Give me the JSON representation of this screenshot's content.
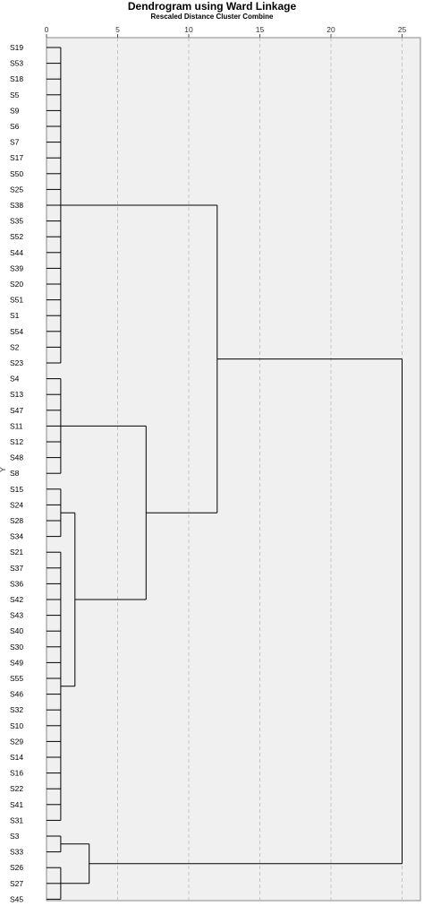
{
  "chart_data": {
    "type": "dendrogram",
    "title": "Dendrogram using Ward Linkage",
    "subtitle": "Rescaled Distance Cluster Combine",
    "ylabel": "Y",
    "xlabel": "",
    "x_ticks": [
      0,
      5,
      10,
      15,
      20,
      25
    ],
    "xlim": [
      0,
      26
    ],
    "grid": true,
    "leaves": [
      "S19",
      "S53",
      "S18",
      "S5",
      "S9",
      "S6",
      "S7",
      "S17",
      "S50",
      "S25",
      "S38",
      "S35",
      "S52",
      "S44",
      "S39",
      "S20",
      "S51",
      "S1",
      "S54",
      "S2",
      "S23",
      "S4",
      "S13",
      "S47",
      "S11",
      "S12",
      "S48",
      "S8",
      "S15",
      "S24",
      "S28",
      "S34",
      "S21",
      "S37",
      "S36",
      "S42",
      "S43",
      "S40",
      "S30",
      "S49",
      "S55",
      "S46",
      "S32",
      "S10",
      "S29",
      "S14",
      "S16",
      "S22",
      "S41",
      "S31",
      "S3",
      "S33",
      "S26",
      "S27",
      "S45"
    ],
    "merges": [
      {
        "members": [
          "S19",
          "S53",
          "S18",
          "S5",
          "S9",
          "S6",
          "S7",
          "S17",
          "S50",
          "S25",
          "S38",
          "S35",
          "S52",
          "S44",
          "S39",
          "S20",
          "S51",
          "S1",
          "S54",
          "S2",
          "S23"
        ],
        "height": 1
      },
      {
        "members": [
          "S4",
          "S13",
          "S47",
          "S11",
          "S12",
          "S48",
          "S8"
        ],
        "height": 1
      },
      {
        "members": [
          "S15",
          "S24",
          "S28",
          "S34"
        ],
        "height": 1
      },
      {
        "members": [
          "S21",
          "S37",
          "S36",
          "S42",
          "S43",
          "S40",
          "S30",
          "S49",
          "S55",
          "S46",
          "S32",
          "S10",
          "S29",
          "S14",
          "S16",
          "S22",
          "S41",
          "S31"
        ],
        "height": 1
      },
      {
        "members": [
          "S3",
          "S33"
        ],
        "height": 1
      },
      {
        "members": [
          "S26",
          "S27",
          "S45"
        ],
        "height": 1
      },
      {
        "members": [
          "S15",
          "S24",
          "S28",
          "S34",
          "S21",
          "S37",
          "S36",
          "S42",
          "S43",
          "S40",
          "S30",
          "S49",
          "S55",
          "S46",
          "S32",
          "S10",
          "S29",
          "S14",
          "S16",
          "S22",
          "S41",
          "S31"
        ],
        "height": 2
      },
      {
        "members": [
          "S3",
          "S33",
          "S26",
          "S27",
          "S45"
        ],
        "height": 3
      },
      {
        "members": [
          "S4",
          "S13",
          "S47",
          "S11",
          "S12",
          "S48",
          "S8",
          "S15",
          "S24",
          "S28",
          "S34",
          "S21",
          "S37",
          "S36",
          "S42",
          "S43",
          "S40",
          "S30",
          "S49",
          "S55",
          "S46",
          "S32",
          "S10",
          "S29",
          "S14",
          "S16",
          "S22",
          "S41",
          "S31"
        ],
        "height": 7
      },
      {
        "members": [
          "S19",
          "S53",
          "S18",
          "S5",
          "S9",
          "S6",
          "S7",
          "S17",
          "S50",
          "S25",
          "S38",
          "S35",
          "S52",
          "S44",
          "S39",
          "S20",
          "S51",
          "S1",
          "S54",
          "S2",
          "S23",
          "S4",
          "S13",
          "S47",
          "S11",
          "S12",
          "S48",
          "S8",
          "S15",
          "S24",
          "S28",
          "S34",
          "S21",
          "S37",
          "S36",
          "S42",
          "S43",
          "S40",
          "S30",
          "S49",
          "S55",
          "S46",
          "S32",
          "S10",
          "S29",
          "S14",
          "S16",
          "S22",
          "S41",
          "S31"
        ],
        "height": 12
      },
      {
        "members": [
          "S19",
          "S53",
          "S18",
          "S5",
          "S9",
          "S6",
          "S7",
          "S17",
          "S50",
          "S25",
          "S38",
          "S35",
          "S52",
          "S44",
          "S39",
          "S20",
          "S51",
          "S1",
          "S54",
          "S2",
          "S23",
          "S4",
          "S13",
          "S47",
          "S11",
          "S12",
          "S48",
          "S8",
          "S15",
          "S24",
          "S28",
          "S34",
          "S21",
          "S37",
          "S36",
          "S42",
          "S43",
          "S40",
          "S30",
          "S49",
          "S55",
          "S46",
          "S32",
          "S10",
          "S29",
          "S14",
          "S16",
          "S22",
          "S41",
          "S31",
          "S3",
          "S33",
          "S26",
          "S27",
          "S45"
        ],
        "height": 25
      }
    ]
  }
}
